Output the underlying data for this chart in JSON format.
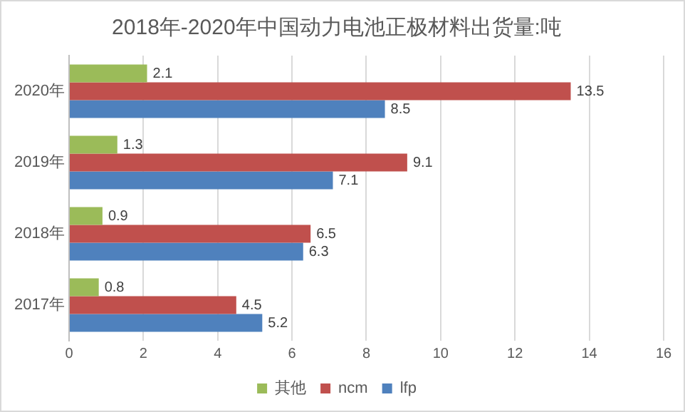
{
  "chart_data": {
    "type": "bar",
    "orientation": "horizontal",
    "title": "2018年-2020年中国动力电池正极材料出货量:吨",
    "categories": [
      "2020年",
      "2019年",
      "2018年",
      "2017年"
    ],
    "series": [
      {
        "name": "其他",
        "color": "#9bbb59",
        "values": [
          2.1,
          1.3,
          0.9,
          0.8
        ]
      },
      {
        "name": "ncm",
        "color": "#c0504d",
        "values": [
          13.5,
          9.1,
          6.5,
          4.5
        ]
      },
      {
        "name": "lfp",
        "color": "#4f81bd",
        "values": [
          8.5,
          7.1,
          6.3,
          5.2
        ]
      }
    ],
    "xlim": [
      0,
      16
    ],
    "xticks": [
      0,
      2,
      4,
      6,
      8,
      10,
      12,
      14,
      16
    ],
    "grid": "x",
    "legend": "bottom",
    "data_labels": true
  }
}
